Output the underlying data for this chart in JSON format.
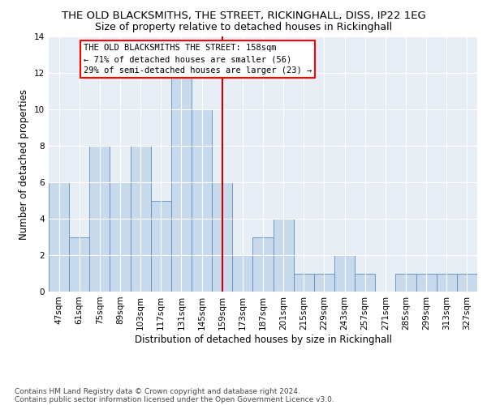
{
  "title": "THE OLD BLACKSMITHS, THE STREET, RICKINGHALL, DISS, IP22 1EG",
  "subtitle": "Size of property relative to detached houses in Rickinghall",
  "xlabel": "Distribution of detached houses by size in Rickinghall",
  "ylabel": "Number of detached properties",
  "categories": [
    "47sqm",
    "61sqm",
    "75sqm",
    "89sqm",
    "103sqm",
    "117sqm",
    "131sqm",
    "145sqm",
    "159sqm",
    "173sqm",
    "187sqm",
    "201sqm",
    "215sqm",
    "229sqm",
    "243sqm",
    "257sqm",
    "271sqm",
    "285sqm",
    "299sqm",
    "313sqm",
    "327sqm"
  ],
  "values": [
    6,
    3,
    8,
    6,
    8,
    5,
    12,
    10,
    6,
    2,
    3,
    4,
    1,
    1,
    2,
    1,
    0,
    1,
    1,
    1,
    1
  ],
  "bar_color": "#c9d9ec",
  "bar_edge_color": "#5b8dc0",
  "highlight_index": 8,
  "highlight_color": "#cc0000",
  "ylim": [
    0,
    14
  ],
  "yticks": [
    0,
    2,
    4,
    6,
    8,
    10,
    12,
    14
  ],
  "annotation_title": "THE OLD BLACKSMITHS THE STREET: 158sqm",
  "annotation_line1": "← 71% of detached houses are smaller (56)",
  "annotation_line2": "29% of semi-detached houses are larger (23) →",
  "footer_line1": "Contains HM Land Registry data © Crown copyright and database right 2024.",
  "footer_line2": "Contains public sector information licensed under the Open Government Licence v3.0.",
  "background_color": "#ffffff",
  "plot_bg_color": "#e8eef5",
  "grid_color": "#ffffff",
  "title_fontsize": 9.5,
  "subtitle_fontsize": 9,
  "axis_label_fontsize": 8.5,
  "tick_fontsize": 7.5,
  "annotation_fontsize": 7.5,
  "footer_fontsize": 6.5
}
